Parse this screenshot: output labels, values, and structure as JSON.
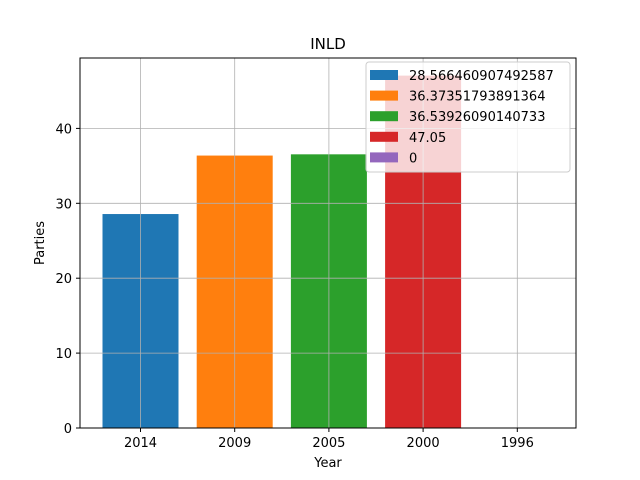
{
  "chart_data": {
    "type": "bar",
    "title": "INLD",
    "xlabel": "Year",
    "ylabel": "Parties",
    "categories": [
      "2014",
      "2009",
      "2005",
      "2000",
      "1996"
    ],
    "values": [
      28.566460907492587,
      36.37351793891364,
      36.53926090140733,
      47.05,
      0
    ],
    "legend_labels": [
      "28.566460907492587",
      "36.37351793891364",
      "36.53926090140733",
      "47.05",
      "0"
    ],
    "colors": [
      "#1f77b4",
      "#ff7f0e",
      "#2ca02c",
      "#d62728",
      "#9467bd"
    ],
    "ylim": [
      0,
      49.4
    ],
    "yticks": [
      0,
      10,
      20,
      30,
      40
    ],
    "grid": true,
    "legend_position": "top-right"
  }
}
